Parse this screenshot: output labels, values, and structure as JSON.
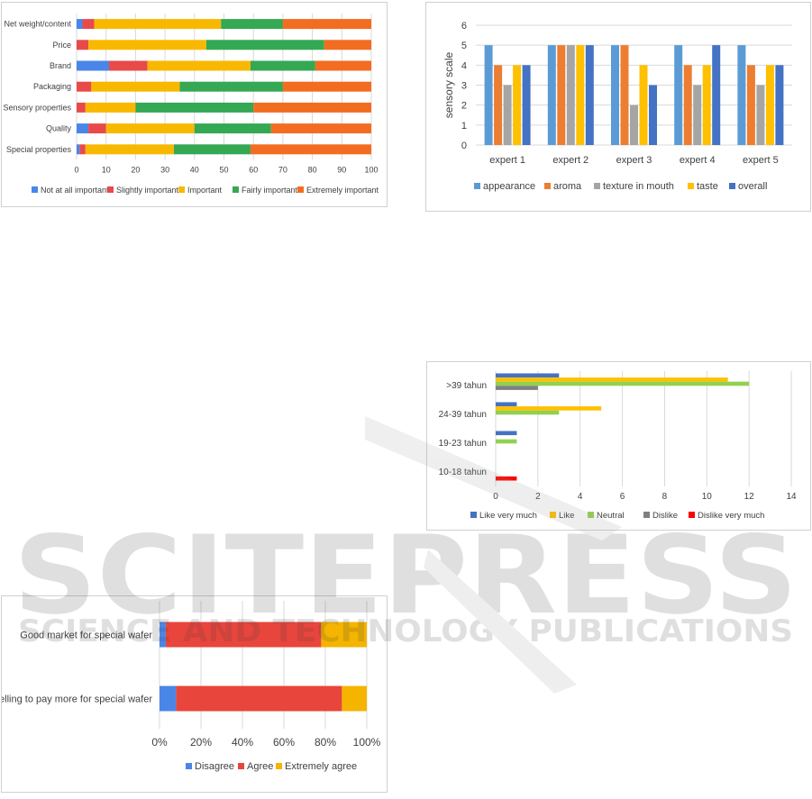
{
  "chart_data": [
    {
      "id": "importance",
      "type": "bar",
      "orientation": "horizontal",
      "stacked": true,
      "title": "",
      "xlabel": "",
      "ylabel": "",
      "xlim": [
        0,
        100
      ],
      "xticks": [
        0,
        10,
        20,
        30,
        40,
        50,
        60,
        70,
        80,
        90,
        100
      ],
      "grid": "vertical",
      "legend_position": "bottom",
      "categories": [
        "Net weight/content",
        "Price",
        "Brand",
        "Packaging",
        "Sensory properties",
        "Quality",
        "Special properties"
      ],
      "series": [
        {
          "name": "Not at all important",
          "color": "#4a86e8",
          "values": [
            2,
            0,
            11,
            0,
            0,
            4,
            1
          ]
        },
        {
          "name": "Slightly important",
          "color": "#e84a4a",
          "values": [
            4,
            4,
            13,
            5,
            3,
            6,
            2
          ]
        },
        {
          "name": "Important",
          "color": "#f9b800",
          "values": [
            43,
            40,
            35,
            30,
            17,
            30,
            30
          ]
        },
        {
          "name": "Fairly important",
          "color": "#34a853",
          "values": [
            21,
            40,
            22,
            35,
            40,
            26,
            26
          ]
        },
        {
          "name": "Extremely important",
          "color": "#f26d21",
          "values": [
            30,
            16,
            19,
            30,
            40,
            34,
            41
          ]
        }
      ]
    },
    {
      "id": "sensory",
      "type": "bar",
      "orientation": "vertical",
      "stacked": false,
      "title": "",
      "xlabel": "",
      "ylabel": "sensory scale",
      "ylim": [
        0,
        6
      ],
      "yticks": [
        0,
        1,
        2,
        3,
        4,
        5,
        6
      ],
      "grid": "horizontal",
      "legend_position": "bottom",
      "categories": [
        "expert 1",
        "expert 2",
        "expert 3",
        "expert 4",
        "expert 5"
      ],
      "series": [
        {
          "name": "appearance",
          "color": "#5b9bd5",
          "values": [
            5,
            5,
            5,
            5,
            5
          ]
        },
        {
          "name": "aroma",
          "color": "#ed7d31",
          "values": [
            4,
            5,
            5,
            4,
            4
          ]
        },
        {
          "name": "texture in mouth",
          "color": "#a5a5a5",
          "values": [
            3,
            5,
            2,
            3,
            3
          ]
        },
        {
          "name": "taste",
          "color": "#ffc000",
          "values": [
            4,
            5,
            4,
            4,
            4
          ]
        },
        {
          "name": "overall",
          "color": "#4472c4",
          "values": [
            4,
            5,
            3,
            5,
            4
          ]
        }
      ]
    },
    {
      "id": "age",
      "type": "bar",
      "orientation": "horizontal",
      "stacked": false,
      "title": "",
      "xlabel": "",
      "ylabel": "",
      "xlim": [
        0,
        14
      ],
      "xticks": [
        0,
        2,
        4,
        6,
        8,
        10,
        12,
        14
      ],
      "grid": "vertical",
      "legend_position": "bottom",
      "categories": [
        ">39 tahun",
        "24-39 tahun",
        "19-23 tahun",
        "10-18 tahun"
      ],
      "series": [
        {
          "name": "Like very much",
          "color": "#4472c4",
          "values": [
            3,
            1,
            1,
            0
          ]
        },
        {
          "name": "Like",
          "color": "#ffc000",
          "values": [
            11,
            5,
            0,
            0
          ]
        },
        {
          "name": "Neutral",
          "color": "#92d050",
          "values": [
            12,
            3,
            1,
            0
          ]
        },
        {
          "name": "Dislike",
          "color": "#808080",
          "values": [
            2,
            0,
            0,
            0
          ]
        },
        {
          "name": "Dislike very much",
          "color": "#ff0000",
          "values": [
            0,
            0,
            0,
            1
          ]
        }
      ]
    },
    {
      "id": "market",
      "type": "bar",
      "orientation": "horizontal",
      "stacked": true,
      "title": "",
      "xlabel": "",
      "ylabel": "",
      "xlim": [
        0,
        100
      ],
      "xticks": [
        "0%",
        "20%",
        "40%",
        "60%",
        "80%",
        "100%"
      ],
      "grid": "vertical",
      "legend_position": "bottom",
      "categories": [
        "Good market for special wafer",
        "Welling to pay more for special wafer"
      ],
      "series": [
        {
          "name": "Disagree",
          "color": "#4a86e8",
          "values": [
            3,
            8
          ]
        },
        {
          "name": "Agree",
          "color": "#e8453c",
          "values": [
            75,
            80
          ]
        },
        {
          "name": "Extremely agree",
          "color": "#f4b400",
          "values": [
            22,
            12
          ]
        }
      ]
    }
  ],
  "watermark": {
    "line1": "SCITEPRESS",
    "line2": "SCIENCE AND TECHNOLOGY PUBLICATIONS"
  }
}
